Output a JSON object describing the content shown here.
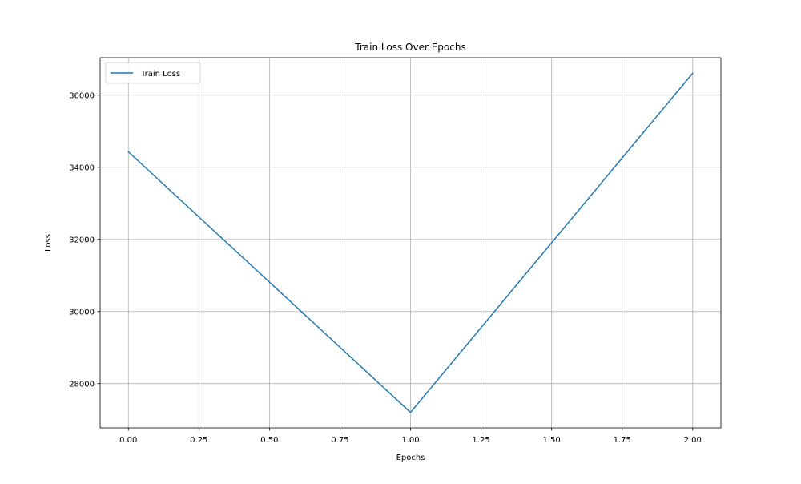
{
  "chart_data": {
    "type": "line",
    "title": "Train Loss Over Epochs",
    "xlabel": "Epochs",
    "ylabel": "Loss",
    "x": [
      0,
      1,
      2
    ],
    "series": [
      {
        "name": "Train Loss",
        "values": [
          34430,
          27200,
          36610
        ],
        "color": "#1f77b4"
      }
    ],
    "xlim": [
      -0.1,
      2.1
    ],
    "ylim": [
      26771,
      37039
    ],
    "xticks": [
      0.0,
      0.25,
      0.5,
      0.75,
      1.0,
      1.25,
      1.5,
      1.75,
      2.0
    ],
    "xtick_labels": [
      "0.00",
      "0.25",
      "0.50",
      "0.75",
      "1.00",
      "1.25",
      "1.50",
      "1.75",
      "2.00"
    ],
    "yticks": [
      28000,
      30000,
      32000,
      34000,
      36000
    ],
    "ytick_labels": [
      "28000",
      "30000",
      "32000",
      "34000",
      "36000"
    ],
    "grid": true,
    "legend_position": "upper left",
    "axis_color": "#000000",
    "grid_color": "#b0b0b0"
  }
}
